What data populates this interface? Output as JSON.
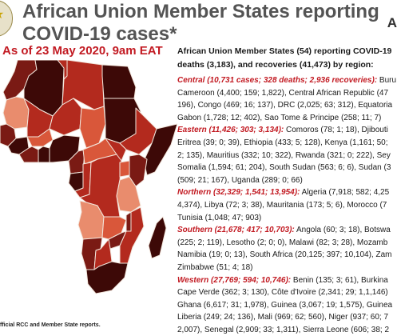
{
  "header": {
    "title": "African Union Member States reporting\nCOVID-19 cases*",
    "as_of": "As of 23 May 2020, 9am EAT",
    "corner_letter": "A"
  },
  "map": {
    "colors": {
      "dark": "#3d0907",
      "dark_red": "#7a1a14",
      "red": "#b32a1e",
      "orange": "#d9573a",
      "light": "#e98c6d",
      "pale": "#f3c4b0"
    }
  },
  "source_note": "fficial RCC and Member State reports.",
  "panel": {
    "intro_lines": [
      "African Union Member States (54) reporting COVID-19",
      "deaths (3,183), and recoveries (41,473) by region:"
    ],
    "paragraphs": [
      {
        "region": "Central (10,731 cases; 328 deaths; 2,936 recoveries):",
        "lead": " Buru",
        "lines": [
          "Cameroon (4,400; 159; 1,822), Central African Republic (47",
          "196), Congo (469; 16; 137), DRC (2,025; 63; 312), Equatoria",
          "Gabon (1,728; 12; 402), Sao Tome & Principe (258; 11; 7)"
        ]
      },
      {
        "region": "Eastern (11,426; 303; 3,134):",
        "lead": " Comoros (78; 1; 18), Djibouti",
        "lines": [
          "Eritrea (39; 0; 39), Ethiopia (433; 5; 128), Kenya (1,161; 50;",
          "2; 135), Mauritius (332; 10; 322), Rwanda (321; 0; 222), Sey",
          "Somalia (1,594; 61; 204), South Sudan (563; 6; 6), Sudan (3",
          "(509; 21; 167), Uganda (289; 0; 66)"
        ]
      },
      {
        "region": "Northern (32,329; 1,541; 13,954):",
        "lead": " Algeria (7,918; 582; 4,25",
        "lines": [
          "4,374), Libya (72; 3; 38), Mauritania (173; 5; 6), Morocco (7",
          "Tunisia (1,048; 47; 903)"
        ]
      },
      {
        "region": "Southern (21,678; 417; 10,703):",
        "lead": " Angola (60; 3; 18), Botswa",
        "lines": [
          "(225; 2; 119), Lesotho (2; 0; 0), Malawi (82; 3; 28), Mozamb",
          "Namibia (19; 0; 13), South Africa (20,125; 397; 10,104), Zam",
          "Zimbabwe (51; 4; 18)"
        ]
      },
      {
        "region": "Western (27,769; 594; 10,746):",
        "lead": " Benin (135; 3; 61), Burkina",
        "lines": [
          "Cape Verde (362; 3; 130), Côte d'Ivoire (2,341; 29; 1,1,146)",
          "Ghana (6,617; 31; 1,978), Guinea (3,067; 19; 1,575), Guinea",
          "Liberia (249; 24; 136), Mali (969; 62; 560), Niger (937; 60; 7",
          "2,007), Senegal (2,909; 33; 1,311), Sierra Leone (606; 38; 2"
        ]
      }
    ]
  }
}
